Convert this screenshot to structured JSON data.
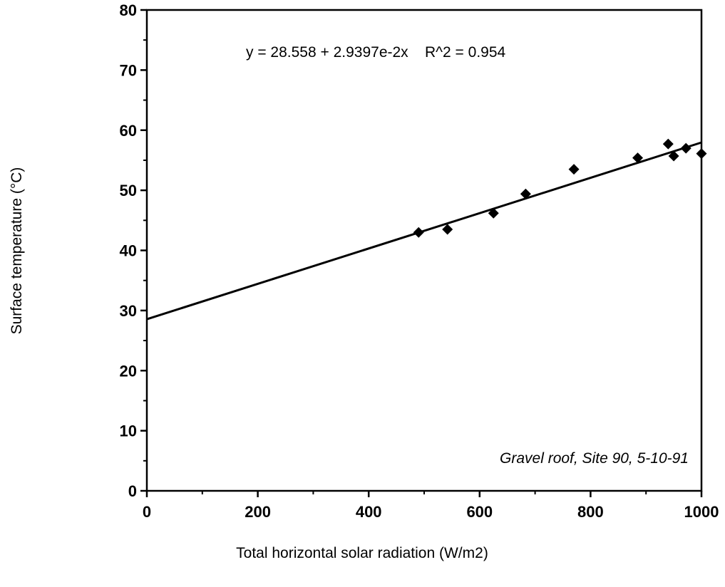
{
  "chart_data": {
    "type": "scatter",
    "title": "",
    "xlabel": "Total horizontal solar radiation (W/m2)",
    "ylabel": "Surface temperature (°C)",
    "xlim": [
      0,
      1000
    ],
    "ylim": [
      0,
      80
    ],
    "xticks": [
      0,
      200,
      400,
      600,
      800,
      1000
    ],
    "yticks": [
      0,
      10,
      20,
      30,
      40,
      50,
      60,
      70,
      80
    ],
    "xtick_labels": [
      "0",
      "200",
      "400",
      "600",
      "800",
      "1000"
    ],
    "ytick_labels": [
      "0",
      "10",
      "20",
      "30",
      "40",
      "50",
      "60",
      "70",
      "80"
    ],
    "grid": false,
    "points": [
      {
        "x": 490,
        "y": 43.0
      },
      {
        "x": 542,
        "y": 43.5
      },
      {
        "x": 625,
        "y": 46.2
      },
      {
        "x": 683,
        "y": 49.4
      },
      {
        "x": 770,
        "y": 53.5
      },
      {
        "x": 885,
        "y": 55.4
      },
      {
        "x": 940,
        "y": 57.7
      },
      {
        "x": 950,
        "y": 55.7
      },
      {
        "x": 972,
        "y": 57.0
      },
      {
        "x": 1000,
        "y": 56.1
      }
    ],
    "fit_line": {
      "intercept": 28.558,
      "slope": 0.029397
    },
    "equation_label": "y = 28.558 + 2.9397e-2x    R^2 = 0.954",
    "annotation": "Gravel roof, Site 90, 5-10-91",
    "marker_color": "#000000",
    "line_color": "#000000"
  }
}
